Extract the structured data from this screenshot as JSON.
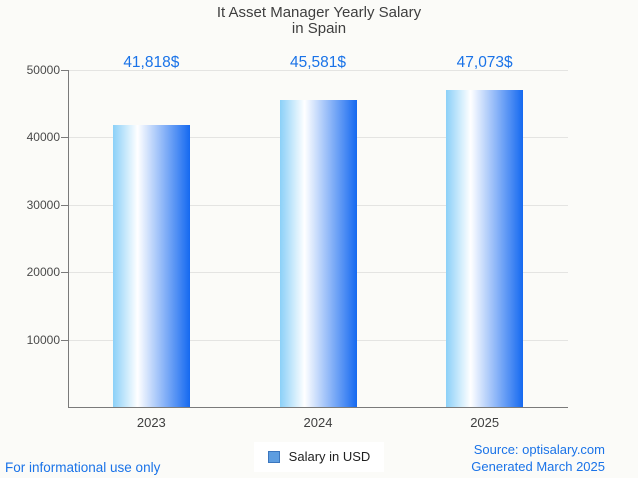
{
  "title": {
    "line1": "It Asset Manager Yearly Salary",
    "line2": "in Spain"
  },
  "chart_data": {
    "type": "bar",
    "title": "It Asset Manager Yearly Salary in Spain",
    "categories": [
      "2023",
      "2024",
      "2025"
    ],
    "values": [
      41818,
      45581,
      47073
    ],
    "value_labels": [
      "41,818$",
      "45,581$",
      "47,073$"
    ],
    "series_name": "Salary in USD",
    "xlabel": "",
    "ylabel": "",
    "ylim": [
      0,
      50000
    ],
    "y_ticks": [
      10000,
      20000,
      30000,
      40000,
      50000
    ],
    "grid": true,
    "legend_position": "bottom-center",
    "bar_gradient": [
      "#8bd0f8",
      "#ffffff",
      "#1569f0"
    ]
  },
  "legend": {
    "label": "Salary in USD"
  },
  "footer": {
    "left": "For informational use only",
    "source": "Source: optisalary.com",
    "generated": "Generated March 2025"
  },
  "colors": {
    "accent_blue": "#1a73e8",
    "title_text": "#3f3f3f",
    "axis": "#7a7a7a",
    "gridline": "#e4e4e2",
    "legend_swatch_fill": "#5d9de0",
    "legend_swatch_border": "#3b76be",
    "background": "#fbfbf8"
  }
}
